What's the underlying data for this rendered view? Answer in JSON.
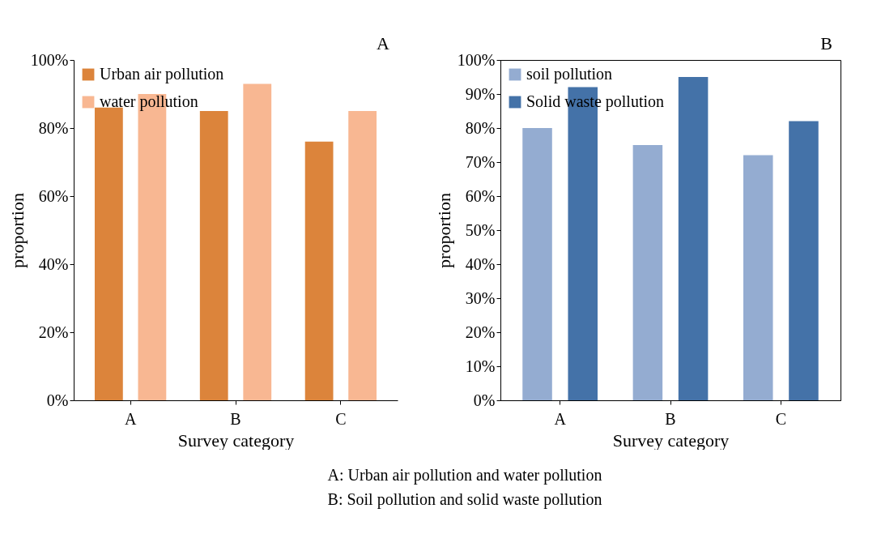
{
  "chart_data": [
    {
      "type": "bar",
      "categories": [
        "A",
        "B",
        "C"
      ],
      "xlabel": "Survey category",
      "ylabel": "proportion",
      "legend": "top left",
      "annotations": [
        "A"
      ],
      "series": [
        {
          "name": "Urban air pollution",
          "color": "#dc843b",
          "values": [
            86,
            85,
            76
          ]
        },
        {
          "name": "water pollution",
          "color": "#f8b792",
          "values": [
            90,
            93,
            85
          ]
        }
      ],
      "ylim": [
        0,
        100
      ],
      "yticks": [
        {
          "value": 0,
          "label": "0%"
        },
        {
          "value": 20,
          "label": "20%"
        },
        {
          "value": 40,
          "label": "40%"
        },
        {
          "value": 60,
          "label": "60%"
        },
        {
          "value": 80,
          "label": "80%"
        },
        {
          "value": 100,
          "label": "100%"
        }
      ]
    },
    {
      "type": "bar",
      "categories": [
        "A",
        "B",
        "C"
      ],
      "xlabel": "Survey category",
      "ylabel": "proportion",
      "legend": "top left",
      "annotations": [
        "B",
        "A: Urban air pollution and water pollution",
        "B: Soil pollution and solid waste pollution"
      ],
      "series": [
        {
          "name": "soil pollution",
          "color": "#94acd1",
          "values": [
            80,
            75,
            72
          ]
        },
        {
          "name": "Solid waste pollution",
          "color": "#4472a8",
          "values": [
            92,
            95,
            82
          ]
        }
      ],
      "ylim": [
        0,
        100
      ],
      "yticks": [
        {
          "value": 0,
          "label": "0%"
        },
        {
          "value": 10,
          "label": "10%"
        },
        {
          "value": 20,
          "label": "20%"
        },
        {
          "value": 30,
          "label": "30%"
        },
        {
          "value": 40,
          "label": "40%"
        },
        {
          "value": 50,
          "label": "50%"
        },
        {
          "value": 60,
          "label": "60%"
        },
        {
          "value": 70,
          "label": "70%"
        },
        {
          "value": 80,
          "label": "80%"
        },
        {
          "value": 90,
          "label": "90%"
        },
        {
          "value": 100,
          "label": "100%"
        }
      ]
    }
  ]
}
